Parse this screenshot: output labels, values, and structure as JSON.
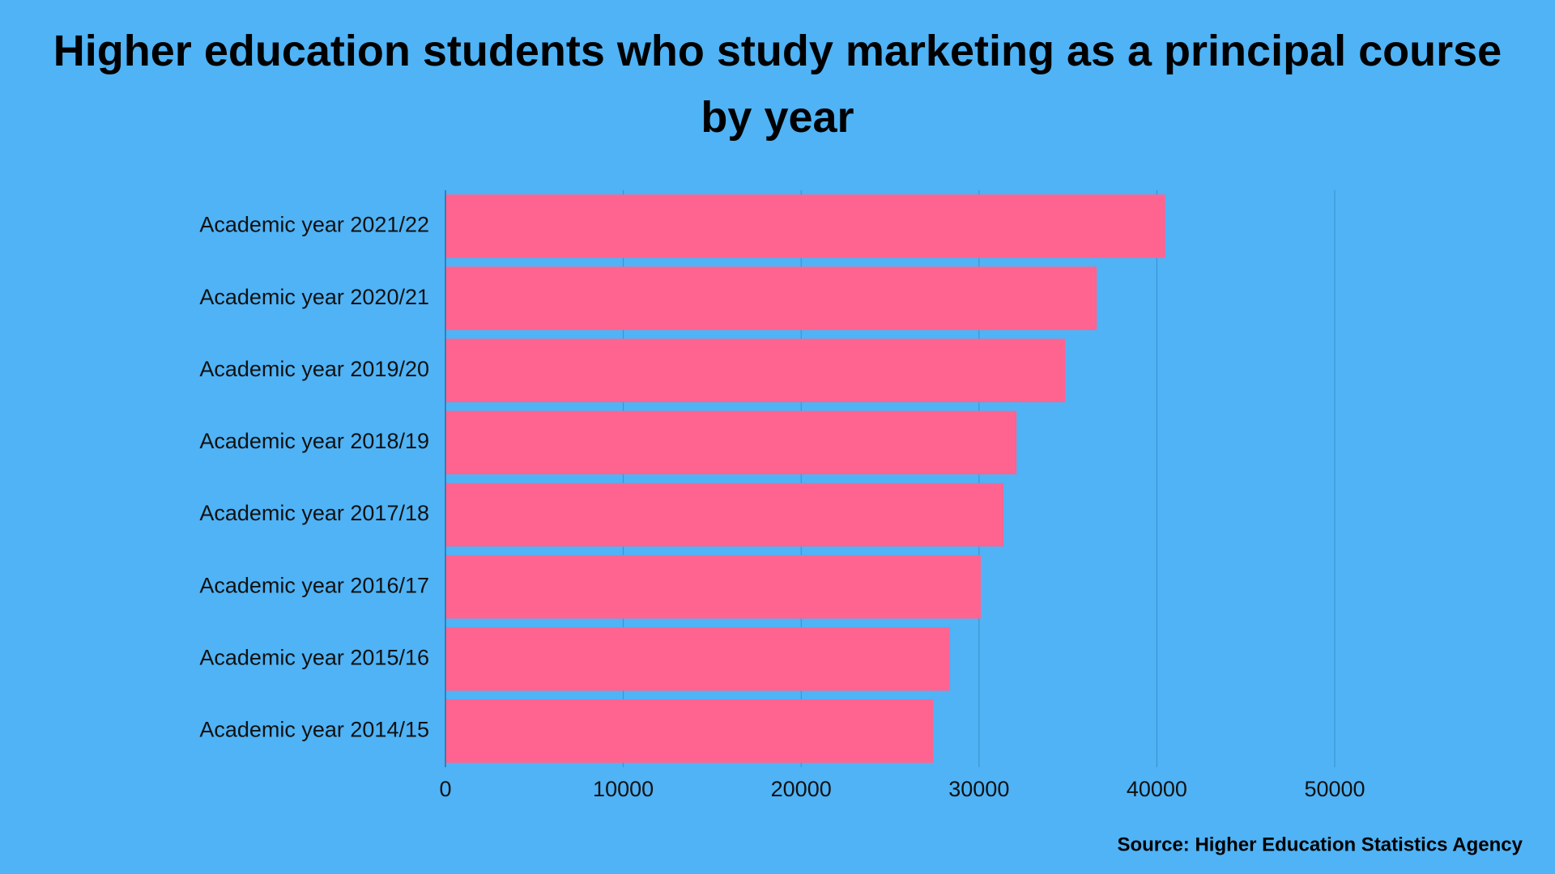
{
  "chart_data": {
    "type": "hbar",
    "title": "Higher education students who study marketing as a principal course by year",
    "source": "Source: Higher Education Statistics Agency",
    "categories": [
      "Academic year 2021/22",
      "Academic year 2020/21",
      "Academic year 2019/20",
      "Academic year 2018/19",
      "Academic year 2017/18",
      "Academic year 2016/17",
      "Academic year 2015/16",
      "Academic year 2014/15"
    ],
    "values": [
      40470,
      36620,
      34840,
      32110,
      31380,
      30100,
      28370,
      27420
    ],
    "color": "#ff6490",
    "xlim": [
      0,
      50000
    ],
    "xticks": [
      0,
      10000,
      20000,
      30000,
      40000,
      50000
    ],
    "grid": true
  }
}
